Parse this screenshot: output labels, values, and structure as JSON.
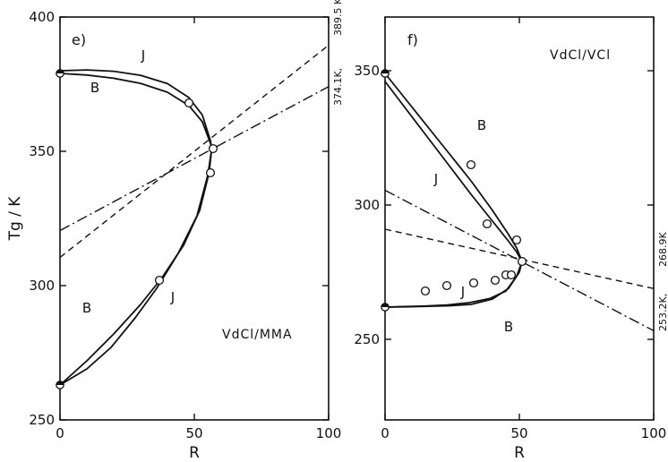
{
  "chart_data": [
    {
      "type": "line",
      "panel_label": "e)",
      "system_label": "VdCl/MMA",
      "xlabel": "R",
      "ylabel": "Tg / K",
      "xlim": [
        0,
        100
      ],
      "ylim": [
        250,
        400
      ],
      "x_ticks": [
        "0",
        "50",
        "100"
      ],
      "y_ticks": [
        "250",
        "300",
        "350",
        "400"
      ],
      "series": [
        {
          "name": "J",
          "style": "solid",
          "x": [
            0,
            10,
            20,
            30,
            40,
            48,
            53,
            56,
            56.5,
            55.5,
            52,
            46,
            38,
            30,
            20,
            10,
            0
          ],
          "y": [
            380,
            380.3,
            379.8,
            378.3,
            375.2,
            370,
            363.5,
            354,
            351,
            342,
            328,
            315,
            303,
            293,
            282,
            272,
            263
          ]
        },
        {
          "name": "B",
          "style": "solid",
          "x": [
            0,
            10,
            20,
            30,
            40,
            48,
            53,
            56,
            56.5,
            55,
            51,
            44,
            36,
            28,
            19,
            10,
            0
          ],
          "y": [
            379,
            378.4,
            377.2,
            375.3,
            372,
            367,
            361,
            353,
            351,
            341,
            326,
            312,
            299,
            288,
            277,
            269,
            263
          ]
        },
        {
          "name": "",
          "style": "dashed",
          "x": [
            0,
            100
          ],
          "y": [
            310.5,
            389.5
          ]
        },
        {
          "name": "",
          "style": "dash-dot",
          "x": [
            0,
            100
          ],
          "y": [
            320.5,
            374.1
          ]
        }
      ],
      "points_open": [
        {
          "x": 48,
          "y": 368
        },
        {
          "x": 57,
          "y": 351
        },
        {
          "x": 56,
          "y": 342
        },
        {
          "x": 37,
          "y": 302
        }
      ],
      "points_filled": [
        {
          "x": 0,
          "y": 379
        },
        {
          "x": 0,
          "y": 263
        }
      ],
      "curve_labels": [
        {
          "text": "J",
          "x": 31,
          "y": 384
        },
        {
          "text": "B",
          "x": 13,
          "y": 372
        },
        {
          "text": "J",
          "x": 42,
          "y": 294
        },
        {
          "text": "B",
          "x": 10,
          "y": 290
        }
      ],
      "right_annotations": [
        "389.5 K",
        "374.1K,"
      ]
    },
    {
      "type": "line",
      "panel_label": "f)",
      "system_label": "VdCl/VCl",
      "xlabel": "R",
      "ylabel": "",
      "xlim": [
        0,
        100
      ],
      "ylim": [
        220,
        370
      ],
      "x_ticks": [
        "0",
        "50",
        "100"
      ],
      "y_ticks": [
        "250",
        "300",
        "350"
      ],
      "series": [
        {
          "name": "B",
          "style": "solid",
          "x": [
            0,
            8,
            16,
            24,
            32,
            40,
            46,
            49,
            51,
            50,
            46,
            40,
            32,
            24,
            16,
            8,
            0
          ],
          "y": [
            349,
            339,
            329,
            319,
            309,
            298,
            289,
            284,
            279,
            275,
            269,
            265,
            263,
            262.5,
            262.3,
            262.1,
            262
          ]
        },
        {
          "name": "J",
          "style": "solid",
          "x": [
            0,
            8,
            16,
            24,
            32,
            40,
            46,
            49,
            51,
            49,
            45,
            39,
            31,
            23,
            15,
            7,
            0
          ],
          "y": [
            346,
            335.5,
            325,
            314.5,
            304,
            294,
            286.5,
            282.5,
            279,
            273.5,
            268,
            265.2,
            263.6,
            262.8,
            262.4,
            262.2,
            262
          ]
        },
        {
          "name": "",
          "style": "dashed",
          "x": [
            0,
            100
          ],
          "y": [
            291,
            268.9
          ]
        },
        {
          "name": "",
          "style": "dash-dot",
          "x": [
            0,
            100
          ],
          "y": [
            305.5,
            253.2
          ]
        }
      ],
      "points_open": [
        {
          "x": 32,
          "y": 315
        },
        {
          "x": 38,
          "y": 293
        },
        {
          "x": 49,
          "y": 287
        },
        {
          "x": 51,
          "y": 279
        },
        {
          "x": 15,
          "y": 268
        },
        {
          "x": 23,
          "y": 270
        },
        {
          "x": 33,
          "y": 271
        },
        {
          "x": 41,
          "y": 272
        },
        {
          "x": 45,
          "y": 274
        },
        {
          "x": 47,
          "y": 274
        }
      ],
      "points_filled": [
        {
          "x": 0,
          "y": 349
        },
        {
          "x": 0,
          "y": 262
        }
      ],
      "curve_labels": [
        {
          "text": "B",
          "x": 36,
          "y": 328
        },
        {
          "text": "J",
          "x": 19,
          "y": 308
        },
        {
          "text": "J",
          "x": 29,
          "y": 266
        },
        {
          "text": "B",
          "x": 46,
          "y": 253
        }
      ],
      "right_annotations": [
        "268.9K",
        "253.2K,"
      ]
    }
  ]
}
